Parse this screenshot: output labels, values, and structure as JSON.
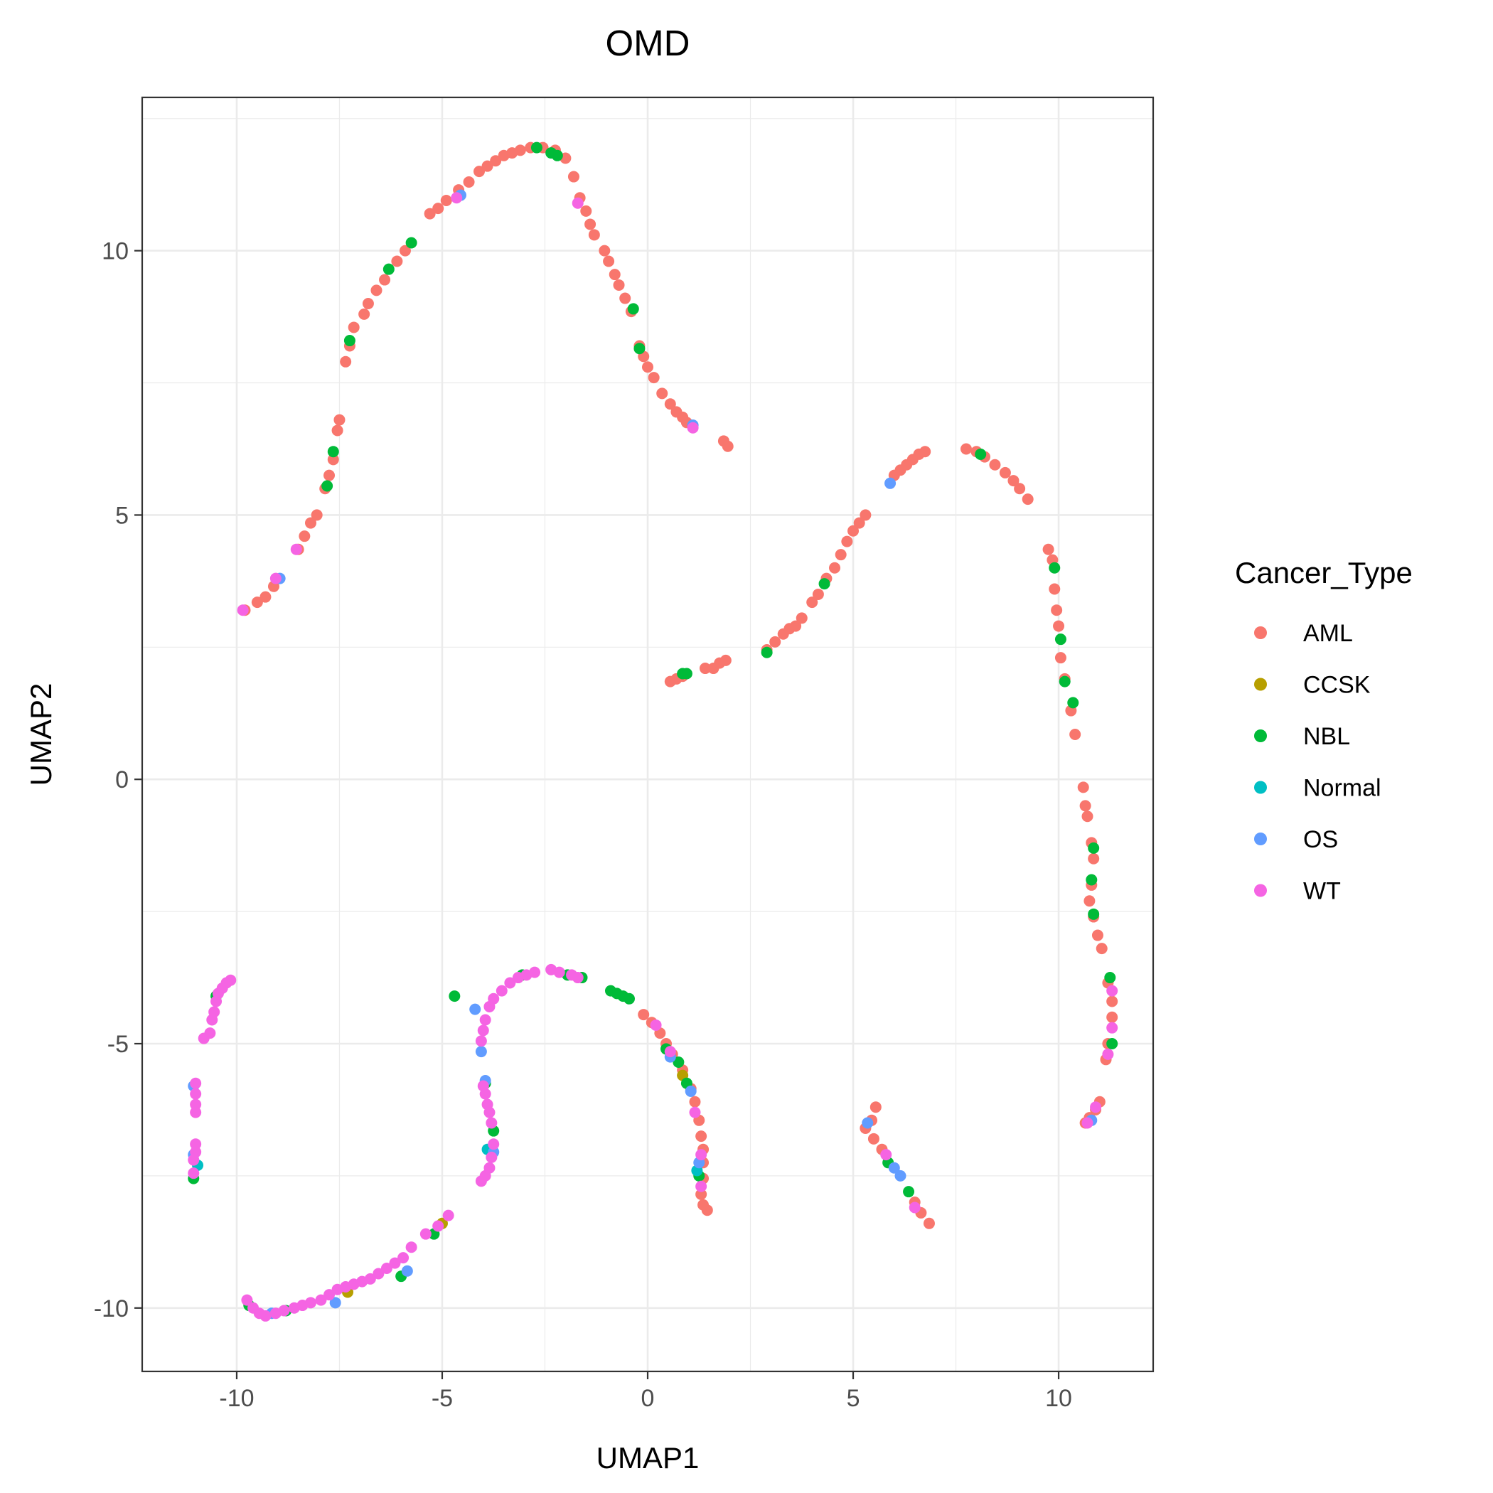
{
  "chart_data": {
    "type": "scatter",
    "title": "OMD",
    "xlabel": "UMAP1",
    "ylabel": "UMAP2",
    "xlim": [
      -12.3,
      12.3
    ],
    "ylim": [
      -11.2,
      12.9
    ],
    "x_ticks": [
      -10,
      -5,
      0,
      5,
      10
    ],
    "x_tick_labels": [
      "-10",
      "-5",
      "0",
      "5",
      "10"
    ],
    "y_ticks": [
      -10,
      -5,
      0,
      5,
      10
    ],
    "y_tick_labels": [
      "-10",
      "-5",
      "0",
      "5",
      "10"
    ],
    "grid": true,
    "legend": {
      "title": "Cancer_Type",
      "position": "right"
    },
    "series": [
      {
        "name": "AML",
        "color": "#F8766D",
        "points": [
          [
            -9.8,
            3.2
          ],
          [
            -9.5,
            3.35
          ],
          [
            -9.3,
            3.45
          ],
          [
            -9.1,
            3.65
          ],
          [
            -8.5,
            4.35
          ],
          [
            -8.35,
            4.6
          ],
          [
            -8.2,
            4.85
          ],
          [
            -8.05,
            5.0
          ],
          [
            -7.85,
            5.5
          ],
          [
            -7.75,
            5.75
          ],
          [
            -7.65,
            6.05
          ],
          [
            -7.55,
            6.6
          ],
          [
            -7.5,
            6.8
          ],
          [
            -7.35,
            7.9
          ],
          [
            -7.25,
            8.2
          ],
          [
            -7.15,
            8.55
          ],
          [
            -6.9,
            8.8
          ],
          [
            -6.8,
            9.0
          ],
          [
            -6.6,
            9.25
          ],
          [
            -6.4,
            9.45
          ],
          [
            -6.1,
            9.8
          ],
          [
            -5.9,
            10.0
          ],
          [
            -5.3,
            10.7
          ],
          [
            -5.1,
            10.8
          ],
          [
            -4.9,
            10.95
          ],
          [
            -4.6,
            11.15
          ],
          [
            -4.35,
            11.3
          ],
          [
            -4.1,
            11.5
          ],
          [
            -3.9,
            11.6
          ],
          [
            -3.7,
            11.7
          ],
          [
            -3.5,
            11.8
          ],
          [
            -3.3,
            11.85
          ],
          [
            -3.1,
            11.9
          ],
          [
            -2.85,
            11.95
          ],
          [
            -2.55,
            11.95
          ],
          [
            -2.25,
            11.9
          ],
          [
            -2.0,
            11.75
          ],
          [
            -1.8,
            11.4
          ],
          [
            -1.65,
            11.0
          ],
          [
            -1.5,
            10.75
          ],
          [
            -1.4,
            10.5
          ],
          [
            -1.3,
            10.3
          ],
          [
            -1.05,
            10.0
          ],
          [
            -0.95,
            9.8
          ],
          [
            -0.8,
            9.55
          ],
          [
            -0.7,
            9.35
          ],
          [
            -0.55,
            9.1
          ],
          [
            -0.4,
            8.85
          ],
          [
            -0.2,
            8.2
          ],
          [
            -0.1,
            8.0
          ],
          [
            0.0,
            7.8
          ],
          [
            0.15,
            7.6
          ],
          [
            0.35,
            7.3
          ],
          [
            0.55,
            7.1
          ],
          [
            0.7,
            6.95
          ],
          [
            0.85,
            6.85
          ],
          [
            0.95,
            6.75
          ],
          [
            1.85,
            6.4
          ],
          [
            1.95,
            6.3
          ],
          [
            0.55,
            1.85
          ],
          [
            0.7,
            1.9
          ],
          [
            0.85,
            1.95
          ],
          [
            1.4,
            2.1
          ],
          [
            1.6,
            2.1
          ],
          [
            1.75,
            2.2
          ],
          [
            1.9,
            2.25
          ],
          [
            2.9,
            2.45
          ],
          [
            3.1,
            2.6
          ],
          [
            3.3,
            2.75
          ],
          [
            3.45,
            2.85
          ],
          [
            3.6,
            2.9
          ],
          [
            3.75,
            3.05
          ],
          [
            4.0,
            3.35
          ],
          [
            4.15,
            3.5
          ],
          [
            4.35,
            3.8
          ],
          [
            4.55,
            4.0
          ],
          [
            4.7,
            4.25
          ],
          [
            4.85,
            4.5
          ],
          [
            5.0,
            4.7
          ],
          [
            5.15,
            4.85
          ],
          [
            5.3,
            5.0
          ],
          [
            6.0,
            5.75
          ],
          [
            6.15,
            5.85
          ],
          [
            6.3,
            5.95
          ],
          [
            6.45,
            6.05
          ],
          [
            6.6,
            6.15
          ],
          [
            6.75,
            6.2
          ],
          [
            7.75,
            6.25
          ],
          [
            8.0,
            6.2
          ],
          [
            8.2,
            6.1
          ],
          [
            8.45,
            5.95
          ],
          [
            8.7,
            5.8
          ],
          [
            8.9,
            5.65
          ],
          [
            9.05,
            5.5
          ],
          [
            9.25,
            5.3
          ],
          [
            9.75,
            4.35
          ],
          [
            9.85,
            4.15
          ],
          [
            9.9,
            3.6
          ],
          [
            9.95,
            3.2
          ],
          [
            10.0,
            2.9
          ],
          [
            10.05,
            2.3
          ],
          [
            10.15,
            1.9
          ],
          [
            10.3,
            1.3
          ],
          [
            10.4,
            0.85
          ],
          [
            10.6,
            -0.15
          ],
          [
            10.65,
            -0.5
          ],
          [
            10.7,
            -0.7
          ],
          [
            10.8,
            -1.2
          ],
          [
            10.85,
            -1.5
          ],
          [
            10.8,
            -2.0
          ],
          [
            10.75,
            -2.3
          ],
          [
            10.85,
            -2.6
          ],
          [
            10.95,
            -2.95
          ],
          [
            11.05,
            -3.2
          ],
          [
            11.2,
            -3.85
          ],
          [
            11.3,
            -4.2
          ],
          [
            11.3,
            -4.5
          ],
          [
            11.2,
            -5.0
          ],
          [
            11.15,
            -5.3
          ],
          [
            11.0,
            -6.1
          ],
          [
            10.9,
            -6.25
          ],
          [
            10.75,
            -6.4
          ],
          [
            10.65,
            -6.5
          ],
          [
            -0.1,
            -4.45
          ],
          [
            0.1,
            -4.6
          ],
          [
            0.3,
            -4.8
          ],
          [
            0.45,
            -5.0
          ],
          [
            0.6,
            -5.2
          ],
          [
            0.85,
            -5.5
          ],
          [
            1.05,
            -5.85
          ],
          [
            1.15,
            -6.1
          ],
          [
            1.25,
            -6.45
          ],
          [
            1.3,
            -6.75
          ],
          [
            1.35,
            -7.0
          ],
          [
            1.35,
            -7.25
          ],
          [
            1.35,
            -7.55
          ],
          [
            1.3,
            -7.85
          ],
          [
            1.35,
            -8.05
          ],
          [
            1.45,
            -8.15
          ],
          [
            5.3,
            -6.6
          ],
          [
            5.45,
            -6.45
          ],
          [
            5.55,
            -6.2
          ],
          [
            5.5,
            -6.8
          ],
          [
            5.7,
            -7.0
          ],
          [
            6.5,
            -8.0
          ],
          [
            6.65,
            -8.2
          ],
          [
            6.85,
            -8.4
          ]
        ]
      },
      {
        "name": "CCSK",
        "color": "#B79F00",
        "points": [
          [
            0.85,
            -5.6
          ],
          [
            -5.0,
            -8.4
          ],
          [
            -7.3,
            -9.7
          ]
        ]
      },
      {
        "name": "NBL",
        "color": "#00BA38",
        "points": [
          [
            -7.8,
            5.55
          ],
          [
            -7.65,
            6.2
          ],
          [
            -7.25,
            8.3
          ],
          [
            -6.3,
            9.65
          ],
          [
            -5.75,
            10.15
          ],
          [
            -2.7,
            11.95
          ],
          [
            -2.35,
            11.85
          ],
          [
            -2.2,
            11.8
          ],
          [
            -0.35,
            8.9
          ],
          [
            -0.2,
            8.15
          ],
          [
            0.85,
            2.0
          ],
          [
            0.95,
            2.0
          ],
          [
            2.9,
            2.4
          ],
          [
            4.3,
            3.7
          ],
          [
            8.1,
            6.15
          ],
          [
            9.9,
            4.0
          ],
          [
            10.05,
            2.65
          ],
          [
            10.15,
            1.85
          ],
          [
            10.35,
            1.45
          ],
          [
            10.85,
            -1.3
          ],
          [
            10.8,
            -1.9
          ],
          [
            10.85,
            -2.55
          ],
          [
            11.25,
            -3.75
          ],
          [
            11.3,
            -5.0
          ],
          [
            -10.5,
            -4.1
          ],
          [
            -11.05,
            -7.55
          ],
          [
            -4.7,
            -4.1
          ],
          [
            -3.95,
            -5.75
          ],
          [
            -3.75,
            -6.65
          ],
          [
            -0.9,
            -4.0
          ],
          [
            -0.75,
            -4.05
          ],
          [
            -0.6,
            -4.1
          ],
          [
            -0.45,
            -4.15
          ],
          [
            0.45,
            -5.1
          ],
          [
            0.75,
            -5.35
          ],
          [
            0.95,
            -5.75
          ],
          [
            1.25,
            -7.5
          ],
          [
            -5.2,
            -8.6
          ],
          [
            -6.0,
            -9.4
          ],
          [
            -8.8,
            -10.05
          ],
          [
            -9.7,
            -9.95
          ],
          [
            6.35,
            -7.8
          ],
          [
            5.85,
            -7.25
          ],
          [
            -1.6,
            -3.75
          ],
          [
            -1.95,
            -3.7
          ],
          [
            -3.05,
            -3.7
          ]
        ]
      },
      {
        "name": "Normal",
        "color": "#00BFC4",
        "points": [
          [
            1.2,
            -7.4
          ],
          [
            -10.95,
            -7.3
          ],
          [
            -3.9,
            -7.0
          ]
        ]
      },
      {
        "name": "OS",
        "color": "#619CFF",
        "points": [
          [
            -8.95,
            3.8
          ],
          [
            -4.55,
            11.05
          ],
          [
            1.1,
            6.7
          ],
          [
            5.9,
            5.6
          ],
          [
            -4.05,
            -5.15
          ],
          [
            -3.95,
            -5.7
          ],
          [
            -4.2,
            -4.35
          ],
          [
            -3.75,
            -7.05
          ],
          [
            -11.05,
            -5.8
          ],
          [
            -11.05,
            -7.1
          ],
          [
            0.55,
            -5.25
          ],
          [
            1.05,
            -5.9
          ],
          [
            1.25,
            -7.25
          ],
          [
            10.8,
            -6.45
          ],
          [
            5.35,
            -6.5
          ],
          [
            6.0,
            -7.35
          ],
          [
            6.15,
            -7.5
          ],
          [
            -9.15,
            -10.1
          ],
          [
            -7.6,
            -9.9
          ],
          [
            -5.85,
            -9.3
          ]
        ]
      },
      {
        "name": "WT",
        "color": "#F564E3",
        "points": [
          [
            -9.85,
            3.2
          ],
          [
            -9.05,
            3.8
          ],
          [
            -8.55,
            4.35
          ],
          [
            -4.65,
            11.0
          ],
          [
            -1.7,
            10.9
          ],
          [
            1.1,
            6.65
          ],
          [
            -10.8,
            -4.9
          ],
          [
            -10.65,
            -4.8
          ],
          [
            -10.6,
            -4.55
          ],
          [
            -10.55,
            -4.4
          ],
          [
            -10.5,
            -4.2
          ],
          [
            -10.45,
            -4.05
          ],
          [
            -10.35,
            -3.95
          ],
          [
            -10.25,
            -3.85
          ],
          [
            -10.15,
            -3.8
          ],
          [
            -11.0,
            -5.75
          ],
          [
            -11.0,
            -5.95
          ],
          [
            -11.0,
            -6.15
          ],
          [
            -11.0,
            -6.3
          ],
          [
            -11.0,
            -6.9
          ],
          [
            -11.0,
            -7.05
          ],
          [
            -11.05,
            -7.2
          ],
          [
            -11.05,
            -7.45
          ],
          [
            -9.75,
            -9.85
          ],
          [
            -9.6,
            -10.0
          ],
          [
            -9.45,
            -10.1
          ],
          [
            -9.3,
            -10.15
          ],
          [
            -9.05,
            -10.1
          ],
          [
            -8.85,
            -10.05
          ],
          [
            -8.6,
            -10.0
          ],
          [
            -8.4,
            -9.95
          ],
          [
            -8.2,
            -9.9
          ],
          [
            -7.95,
            -9.85
          ],
          [
            -7.75,
            -9.75
          ],
          [
            -7.55,
            -9.65
          ],
          [
            -7.35,
            -9.6
          ],
          [
            -7.15,
            -9.55
          ],
          [
            -6.95,
            -9.5
          ],
          [
            -6.75,
            -9.45
          ],
          [
            -6.55,
            -9.35
          ],
          [
            -6.35,
            -9.25
          ],
          [
            -6.15,
            -9.15
          ],
          [
            -5.95,
            -9.05
          ],
          [
            -5.75,
            -8.85
          ],
          [
            -5.4,
            -8.6
          ],
          [
            -5.1,
            -8.45
          ],
          [
            -4.85,
            -8.25
          ],
          [
            -4.05,
            -7.6
          ],
          [
            -3.95,
            -7.5
          ],
          [
            -3.85,
            -7.35
          ],
          [
            -3.8,
            -7.15
          ],
          [
            -3.75,
            -6.9
          ],
          [
            -3.8,
            -6.5
          ],
          [
            -3.85,
            -6.3
          ],
          [
            -3.9,
            -6.15
          ],
          [
            -3.95,
            -5.95
          ],
          [
            -4.0,
            -5.8
          ],
          [
            -4.05,
            -4.95
          ],
          [
            -4.0,
            -4.75
          ],
          [
            -3.95,
            -4.55
          ],
          [
            -3.85,
            -4.3
          ],
          [
            -3.75,
            -4.15
          ],
          [
            -3.55,
            -4.0
          ],
          [
            -3.35,
            -3.85
          ],
          [
            -3.15,
            -3.75
          ],
          [
            -2.95,
            -3.7
          ],
          [
            -2.75,
            -3.65
          ],
          [
            -2.35,
            -3.6
          ],
          [
            -2.15,
            -3.65
          ],
          [
            -1.85,
            -3.7
          ],
          [
            -1.7,
            -3.75
          ],
          [
            0.2,
            -4.65
          ],
          [
            0.55,
            -5.15
          ],
          [
            1.15,
            -6.3
          ],
          [
            1.3,
            -7.1
          ],
          [
            1.3,
            -7.7
          ],
          [
            5.8,
            -7.1
          ],
          [
            6.5,
            -8.1
          ],
          [
            11.3,
            -4.0
          ],
          [
            11.3,
            -4.7
          ],
          [
            11.2,
            -5.2
          ],
          [
            10.9,
            -6.2
          ],
          [
            10.7,
            -6.5
          ]
        ]
      }
    ]
  }
}
